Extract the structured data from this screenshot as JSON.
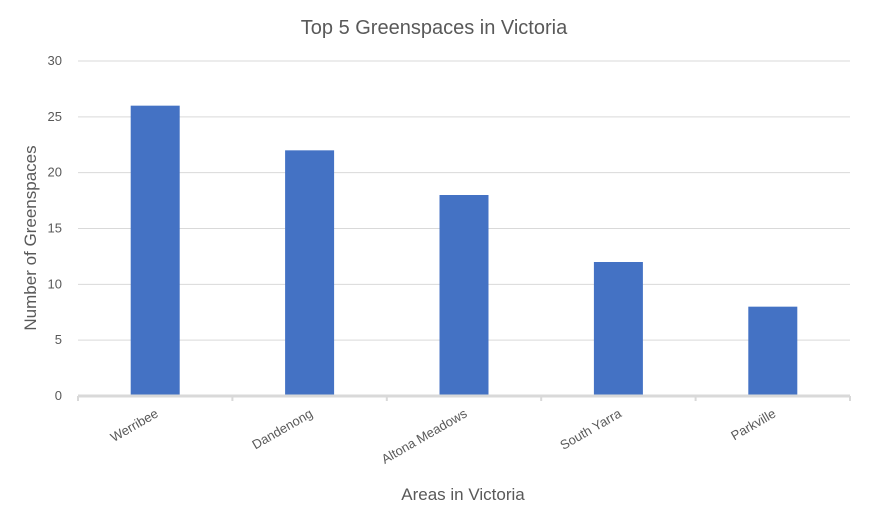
{
  "chart_data": {
    "type": "bar",
    "title": "Top 5 Greenspaces in Victoria",
    "xlabel": "Areas in Victoria",
    "ylabel": "Number of Greenspaces",
    "categories": [
      "Werribee",
      "Dandenong",
      "Altona Meadows",
      "South Yarra",
      "Parkville"
    ],
    "values": [
      26,
      22,
      18,
      12,
      8
    ],
    "ylim": [
      0,
      30
    ],
    "yticks": [
      "0",
      "5",
      "10",
      "15",
      "20",
      "25",
      "30"
    ],
    "grid": true,
    "legend": "none",
    "bar_color": "#4472c4"
  }
}
